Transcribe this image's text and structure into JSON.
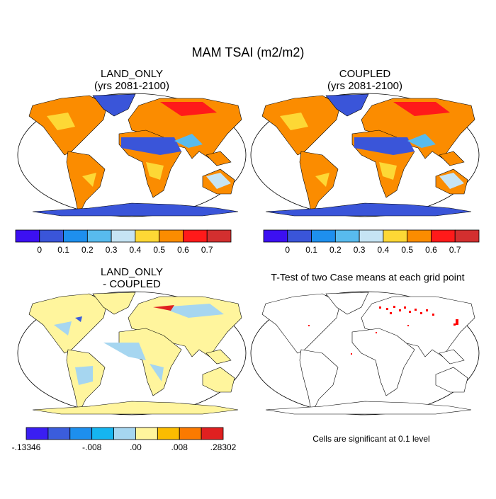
{
  "title": "MAM TSAI (m2/m2)",
  "panels": [
    {
      "title": "LAND_ONLY",
      "subtitle": "(yrs 2081-2100)"
    },
    {
      "title": "COUPLED",
      "subtitle": "(yrs 2081-2100)"
    },
    {
      "title": "LAND_ONLY",
      "subtitle": "- COUPLED"
    },
    {
      "title": "T-Test of two Case means at each grid point"
    }
  ],
  "colorbars": [
    {
      "colors": [
        "#3c10f2",
        "#3a55d9",
        "#1e8fee",
        "#58bbee",
        "#c6e4f4",
        "#fdd835",
        "#fb8c00",
        "#ff1a1a",
        "#d32f2f"
      ],
      "labels": [
        null,
        "0",
        "0.1",
        "0.2",
        "0.3",
        "0.4",
        "0.5",
        "0.6",
        "0.7",
        null
      ]
    },
    {
      "colors": [
        "#3c10f2",
        "#3a55d9",
        "#1e8fee",
        "#58bbee",
        "#c6e4f4",
        "#fdd835",
        "#fb8c00",
        "#ff1a1a",
        "#d32f2f"
      ],
      "labels": [
        null,
        "0",
        "0.1",
        "0.2",
        "0.3",
        "0.4",
        "0.5",
        "0.6",
        "0.7",
        null
      ]
    },
    {
      "colors": [
        "#3a1ef2",
        "#3b5ddc",
        "#1d8fee",
        "#15b5f0",
        "#a6d6f0",
        "#fff59d",
        "#fbbc00",
        "#fb7a00",
        "#e02020"
      ],
      "labels": [
        "-.13346",
        null,
        null,
        "-.008",
        null,
        ".00",
        null,
        ".008",
        null,
        ".28302"
      ]
    }
  ],
  "note": "Cells are significant at 0.1 level"
}
